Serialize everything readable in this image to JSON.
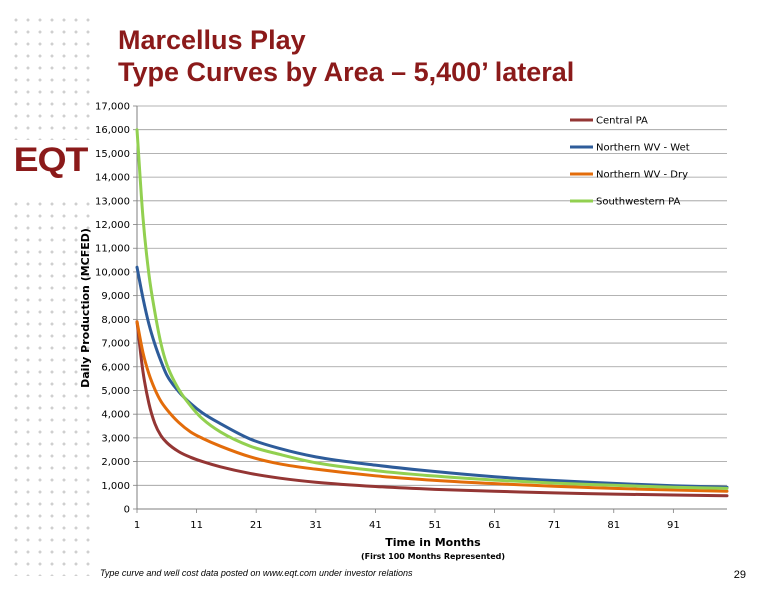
{
  "slide": {
    "title_line1": "Marcellus Play",
    "title_line2": "Type Curves by Area – 5,400’ lateral",
    "logo_text": "EQT",
    "footnote": "Type curve and well cost data posted on www.eqt.com under investor relations",
    "page_number": "29"
  },
  "chart_data": {
    "type": "line",
    "title": "",
    "xlabel": "Time in Months",
    "xlabel_sub": "(First 100 Months Represented)",
    "ylabel": "Daily Production (MCFED)",
    "xlim": [
      1,
      100
    ],
    "ylim": [
      0,
      17000
    ],
    "x_ticks": [
      1,
      11,
      21,
      31,
      41,
      51,
      61,
      71,
      81,
      91
    ],
    "y_ticks": [
      0,
      1000,
      2000,
      3000,
      4000,
      5000,
      6000,
      7000,
      8000,
      9000,
      10000,
      11000,
      12000,
      13000,
      14000,
      15000,
      16000,
      17000
    ],
    "y_tick_labels": [
      "0",
      "1,000",
      "2,000",
      "3,000",
      "4,000",
      "5,000",
      "6,000",
      "7,000",
      "8,000",
      "9,000",
      "10,000",
      "11,000",
      "12,000",
      "13,000",
      "14,000",
      "15,000",
      "16,000",
      "17,000"
    ],
    "grid": "horizontal",
    "legend_position": "top-right",
    "x": [
      1,
      2,
      3,
      4,
      5,
      6,
      8,
      10,
      12,
      15,
      20,
      25,
      31,
      41,
      51,
      61,
      71,
      81,
      91,
      100
    ],
    "series": [
      {
        "name": "Central PA",
        "color": "#943634",
        "values": [
          7900,
          5800,
          4450,
          3600,
          3100,
          2800,
          2420,
          2180,
          2000,
          1780,
          1500,
          1300,
          1130,
          950,
          830,
          750,
          680,
          630,
          590,
          560
        ]
      },
      {
        "name": "Northern WV - Wet",
        "color": "#2e5c9a",
        "values": [
          10200,
          8900,
          7800,
          6950,
          6250,
          5650,
          4950,
          4450,
          4050,
          3600,
          2950,
          2550,
          2200,
          1850,
          1580,
          1360,
          1200,
          1080,
          980,
          920
        ]
      },
      {
        "name": "Northern WV - Dry",
        "color": "#e36c0a",
        "values": [
          7900,
          6600,
          5700,
          5050,
          4550,
          4200,
          3650,
          3250,
          2980,
          2650,
          2200,
          1900,
          1680,
          1400,
          1210,
          1070,
          960,
          870,
          800,
          750
        ]
      },
      {
        "name": "Southwestern PA",
        "color": "#92d050",
        "values": [
          16000,
          12300,
          9900,
          8300,
          7000,
          6100,
          5050,
          4350,
          3800,
          3250,
          2650,
          2300,
          1950,
          1620,
          1390,
          1220,
          1090,
          1000,
          920,
          870
        ]
      }
    ]
  }
}
